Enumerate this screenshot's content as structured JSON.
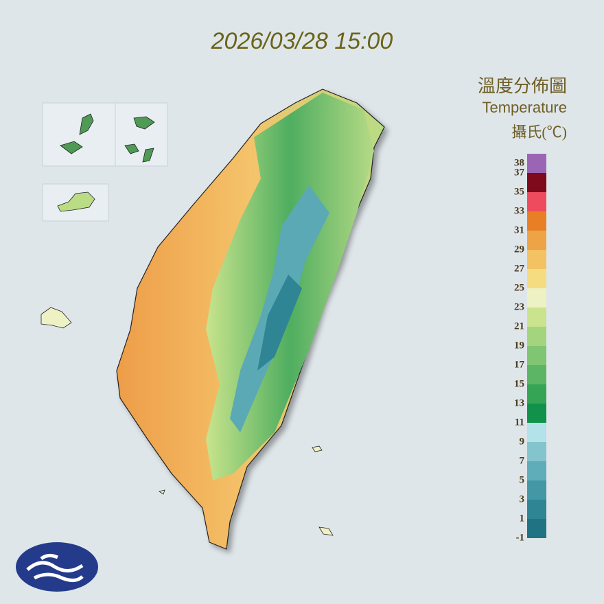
{
  "header": {
    "title": "2026/03/28 15:00"
  },
  "legend": {
    "title": "溫度分佈圖",
    "subtitle": "Temperature",
    "unit": "攝氏(℃)",
    "range": [
      -1,
      39
    ],
    "ticks": [
      38,
      37,
      35,
      33,
      31,
      29,
      27,
      25,
      23,
      21,
      19,
      17,
      15,
      13,
      11,
      9,
      7,
      5,
      3,
      1,
      -1
    ],
    "colors": [
      "#1f7382",
      "#2f8593",
      "#4298a5",
      "#5eadb9",
      "#84c4cd",
      "#b3e2e8",
      "#11924a",
      "#36a455",
      "#5bb565",
      "#80c572",
      "#a4d47e",
      "#c9e48c",
      "#eef1c4",
      "#f6dc80",
      "#f3c263",
      "#efa347",
      "#e97f24",
      "#ef4b5e",
      "#7e0a1c",
      "#9a66b4"
    ]
  }
}
